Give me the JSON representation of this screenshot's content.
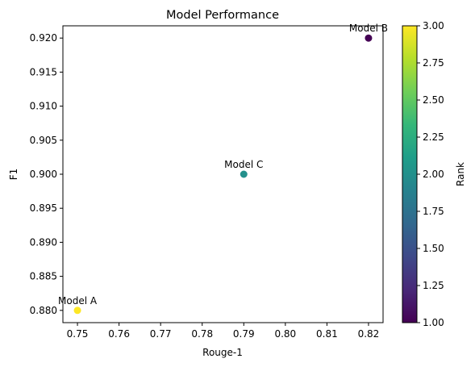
{
  "chart_data": {
    "type": "scatter",
    "title": "Model Performance",
    "xlabel": "Rouge-1",
    "ylabel": "F1",
    "xlim": [
      0.7465,
      0.8235
    ],
    "ylim": [
      0.8782,
      0.9218
    ],
    "x_ticks": [
      "0.75",
      "0.76",
      "0.77",
      "0.78",
      "0.79",
      "0.80",
      "0.81",
      "0.82"
    ],
    "x_tick_values": [
      0.75,
      0.76,
      0.77,
      0.78,
      0.79,
      0.8,
      0.81,
      0.82
    ],
    "y_ticks": [
      "0.880",
      "0.885",
      "0.890",
      "0.895",
      "0.900",
      "0.905",
      "0.910",
      "0.915",
      "0.920"
    ],
    "y_tick_values": [
      0.88,
      0.885,
      0.89,
      0.895,
      0.9,
      0.905,
      0.91,
      0.915,
      0.92
    ],
    "grid": false,
    "points": [
      {
        "label": "Model A",
        "x": 0.75,
        "y": 0.88,
        "rank": 3
      },
      {
        "label": "Model B",
        "x": 0.82,
        "y": 0.92,
        "rank": 1
      },
      {
        "label": "Model C",
        "x": 0.79,
        "y": 0.9,
        "rank": 2
      }
    ],
    "colorbar": {
      "label": "Rank",
      "colormap": "viridis",
      "range": [
        1.0,
        3.0
      ],
      "ticks": [
        "1.00",
        "1.25",
        "1.50",
        "1.75",
        "2.00",
        "2.25",
        "2.50",
        "2.75",
        "3.00"
      ],
      "tick_values": [
        1.0,
        1.25,
        1.5,
        1.75,
        2.0,
        2.25,
        2.5,
        2.75,
        3.0
      ],
      "stops": [
        "#440154",
        "#482878",
        "#3e4989",
        "#31688e",
        "#26828e",
        "#1f9e89",
        "#35b779",
        "#6ece58",
        "#b5de2b",
        "#fde725"
      ]
    }
  }
}
